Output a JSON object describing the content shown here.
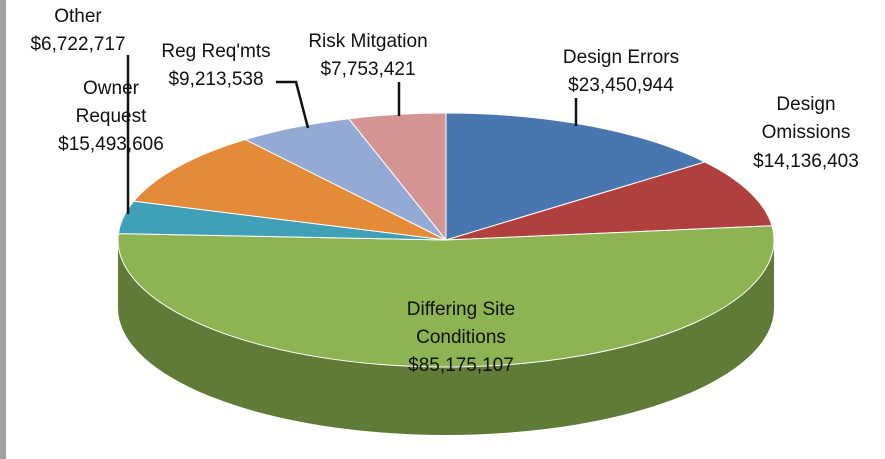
{
  "chart_data": {
    "type": "pie",
    "categories": [
      "Design Errors",
      "Design Omissions",
      "Differing Site Conditions",
      "Other",
      "Owner Request",
      "Reg Req'mts",
      "Risk Mitgation"
    ],
    "values": [
      23450944,
      14136403,
      85175107,
      6722717,
      15493606,
      9213538,
      7753421
    ],
    "value_labels": [
      "$23,450,944",
      "$14,136,403",
      "$85,175,107",
      "$6,722,717",
      "$15,493,606",
      "$9,213,538",
      "$7,753,421"
    ],
    "colors": [
      "#4a76b0",
      "#b0403d",
      "#8db352",
      "#3fa0b8",
      "#e58a38",
      "#93abd4",
      "#d49494"
    ]
  }
}
